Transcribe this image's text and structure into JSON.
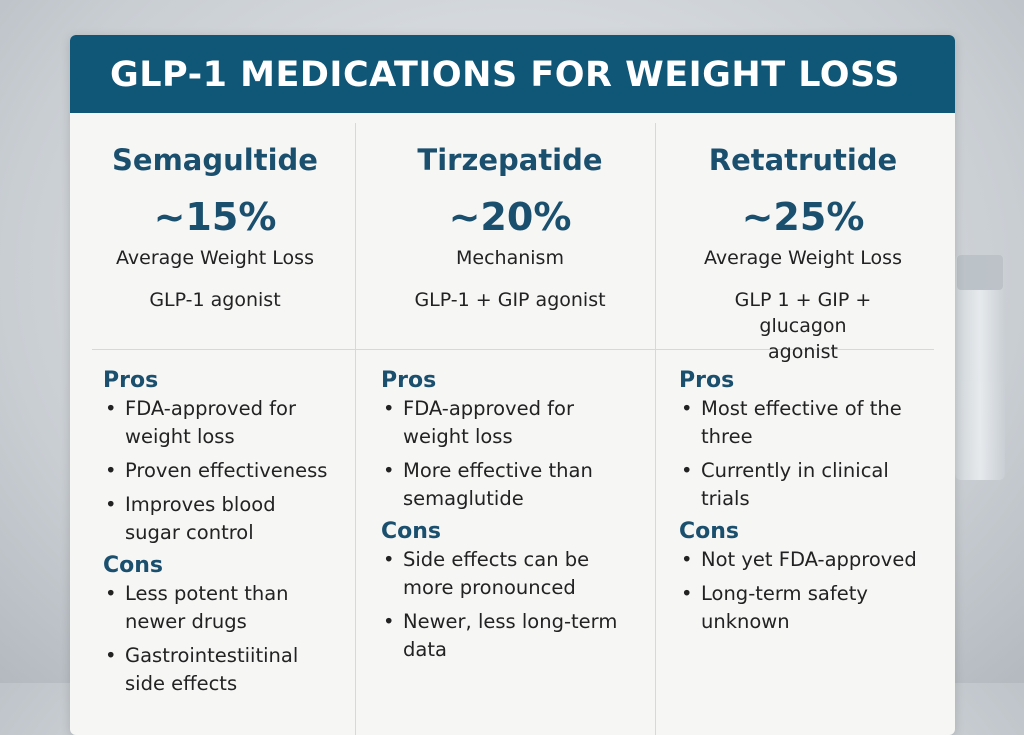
{
  "title": "GLP-1 MEDICATIONS FOR WEIGHT LOSS",
  "columns": [
    {
      "name": "Semagultide",
      "percent": "~15%",
      "label": "Average Weight Loss",
      "mechanism": "GLP-1 agonist",
      "pros_label": "Pros",
      "pros": [
        "FDA-approved for weight loss",
        "Proven effectiveness",
        "Improves blood sugar control"
      ],
      "cons_label": "Cons",
      "cons": [
        "Less potent than newer drugs",
        "Gastrointestiitinal side effects"
      ]
    },
    {
      "name": "Tirzepatide",
      "percent": "~20%",
      "label": "Mechanism",
      "mechanism": "GLP-1 + GIP agonist",
      "pros_label": "Pros",
      "pros": [
        "FDA-approved for weight loss",
        "More effective than semaglutide"
      ],
      "cons_label": "Cons",
      "cons": [
        "Side effects can be more pronounced",
        "Newer, less long-term data"
      ]
    },
    {
      "name": "Retatrutide",
      "percent": "~25%",
      "label": "Average Weight Loss",
      "mechanism": "GLP 1 + GIP + glucagon agonist",
      "pros_label": "Pros",
      "pros": [
        "Most effective of the three",
        "Currently in clinical trials"
      ],
      "cons_label": "Cons",
      "cons": [
        "Not yet FDA-approved",
        "Long-term safety unknown"
      ]
    }
  ]
}
